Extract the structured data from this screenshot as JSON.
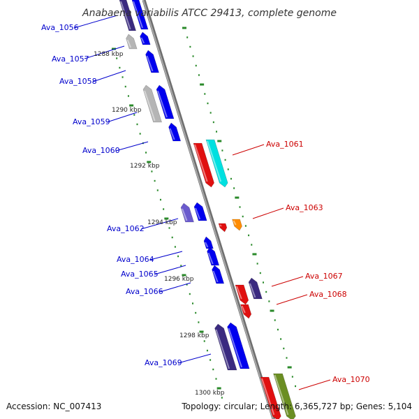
{
  "title": "Anabaena variabilis ATCC 29413, complete genome",
  "accession": "Accession: NC_007413",
  "summary": "Topology: circular; Length: 6,365,727 bp; Genes: 5,104",
  "colors": {
    "backbone": "#8a8a8a",
    "tick": "#2a8a2a",
    "blue": "#0000ee",
    "navy": "#3a2a80",
    "purple": "#6a5acd",
    "grey": "#b5b5b5",
    "red": "#e01010",
    "cyan": "#00e0e0",
    "orange": "#ff8c00",
    "olive": "#6b8e23",
    "label_left": "#0000cc",
    "label_right": "#cc0000"
  },
  "kbp_labels": [
    "1288 kbp",
    "1290 kbp",
    "1292 kbp",
    "1294 kbp",
    "1296 kbp",
    "1298 kbp",
    "1300 kbp"
  ],
  "genes_left": [
    {
      "id": "Ava_1056",
      "color": "navy"
    },
    {
      "id": "Ava_1057",
      "color": "grey"
    },
    {
      "id": "Ava_1058",
      "color": "blue"
    },
    {
      "id": "Ava_1059",
      "color": "blue"
    },
    {
      "id": "Ava_1060",
      "color": "blue"
    },
    {
      "id": "Ava_1062",
      "color": "blue"
    },
    {
      "id": "Ava_1064",
      "color": "blue"
    },
    {
      "id": "Ava_1065",
      "color": "blue"
    },
    {
      "id": "Ava_1066",
      "color": "blue"
    },
    {
      "id": "Ava_1069",
      "color": "blue"
    }
  ],
  "genes_right": [
    {
      "id": "Ava_1061",
      "color": "cyan"
    },
    {
      "id": "Ava_1063",
      "color": "orange"
    },
    {
      "id": "Ava_1067",
      "color": "navy"
    },
    {
      "id": "Ava_1068",
      "color": "red"
    },
    {
      "id": "Ava_1070",
      "color": "olive"
    }
  ]
}
